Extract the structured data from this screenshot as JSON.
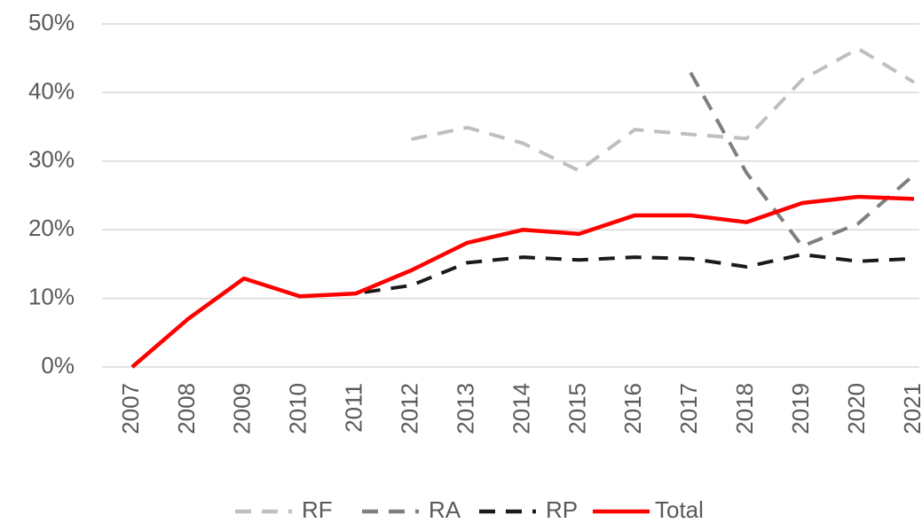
{
  "chart_data": {
    "type": "line",
    "categories": [
      "2007",
      "2008",
      "2009",
      "2010",
      "2011",
      "2012",
      "2013",
      "2014",
      "2015",
      "2016",
      "2017",
      "2018",
      "2019",
      "2020",
      "2021"
    ],
    "series": [
      {
        "name": "RF",
        "color": "#bfbfbf",
        "dashed": true,
        "values": [
          null,
          null,
          null,
          null,
          null,
          33.2,
          34.9,
          32.6,
          28.6,
          34.6,
          33.9,
          33.3,
          41.9,
          46.4,
          41.5
        ]
      },
      {
        "name": "RA",
        "color": "#7f7f7f",
        "dashed": true,
        "values": [
          null,
          null,
          null,
          null,
          null,
          null,
          null,
          null,
          null,
          null,
          42.9,
          28.3,
          17.6,
          20.9,
          28.0
        ]
      },
      {
        "name": "RP",
        "color": "#1a1a1a",
        "dashed": true,
        "values": [
          0,
          7.0,
          12.9,
          10.3,
          10.7,
          11.9,
          15.2,
          16.0,
          15.6,
          16.0,
          15.8,
          14.6,
          16.4,
          15.4,
          15.8
        ]
      },
      {
        "name": "Total",
        "color": "#ff0000",
        "dashed": false,
        "values": [
          0,
          7.0,
          12.9,
          10.3,
          10.7,
          14.1,
          18.1,
          20.0,
          19.4,
          22.1,
          22.1,
          21.1,
          23.9,
          24.8,
          24.5
        ]
      }
    ],
    "ylim": [
      0,
      50
    ],
    "yticks": [
      {
        "value": 0,
        "label": "0%"
      },
      {
        "value": 10,
        "label": "10%"
      },
      {
        "value": 20,
        "label": "20%"
      },
      {
        "value": 30,
        "label": "30%"
      },
      {
        "value": 40,
        "label": "40%"
      },
      {
        "value": 50,
        "label": "50%"
      }
    ],
    "grid": true,
    "legend": "bottom"
  }
}
